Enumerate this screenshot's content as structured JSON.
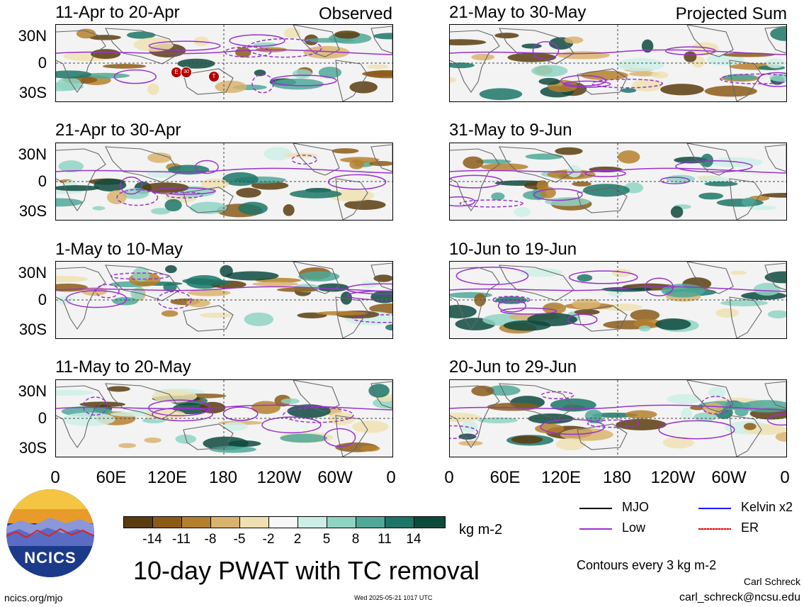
{
  "panels": [
    {
      "title": "11-Apr to 20-Apr",
      "tag": "Observed"
    },
    {
      "title": "21-Apr to 30-Apr",
      "tag": ""
    },
    {
      "title": "1-May to 10-May",
      "tag": ""
    },
    {
      "title": "11-May to 20-May",
      "tag": ""
    },
    {
      "title": "21-May to 30-May",
      "tag": "Projected Sum"
    },
    {
      "title": "31-May to 9-Jun",
      "tag": ""
    },
    {
      "title": "10-Jun to 19-Jun",
      "tag": ""
    },
    {
      "title": "20-Jun to 29-Jun",
      "tag": ""
    }
  ],
  "lat_labels": [
    "30N",
    "0",
    "30S"
  ],
  "lon_labels": [
    "0",
    "60E",
    "120E",
    "180",
    "120W",
    "60W",
    "0"
  ],
  "tc_markers": [
    "E",
    "30",
    "T"
  ],
  "colorbar": {
    "colors": [
      "#5a3c0e",
      "#8b5a17",
      "#b5802e",
      "#d9b36e",
      "#efe0b2",
      "#f7f7f7",
      "#cdeee6",
      "#8fd3c3",
      "#4fa898",
      "#1c7567",
      "#0d4a3e"
    ],
    "labels": [
      "-14",
      "-11",
      "-8",
      "-5",
      "-2",
      "2",
      "5",
      "8",
      "11",
      "14"
    ],
    "units": "kg m-2"
  },
  "legend": {
    "items": [
      {
        "label": "MJO",
        "color": "#000000"
      },
      {
        "label": "Kelvin x2",
        "color": "#1a1aff"
      },
      {
        "label": "Low",
        "color": "#9932cc"
      },
      {
        "label": "ER",
        "color": "#e00000"
      }
    ],
    "contours_note": "Contours every 3 kg m-2"
  },
  "logo_text": "NCICS",
  "main_title": "10-day PWAT with TC removal",
  "footer": {
    "website": "ncics.org/mjo",
    "timestamp": "Wed 2025-05-21 1017 UTC",
    "author": "Carl Schreck",
    "email": "carl_schreck@ncsu.edu"
  }
}
